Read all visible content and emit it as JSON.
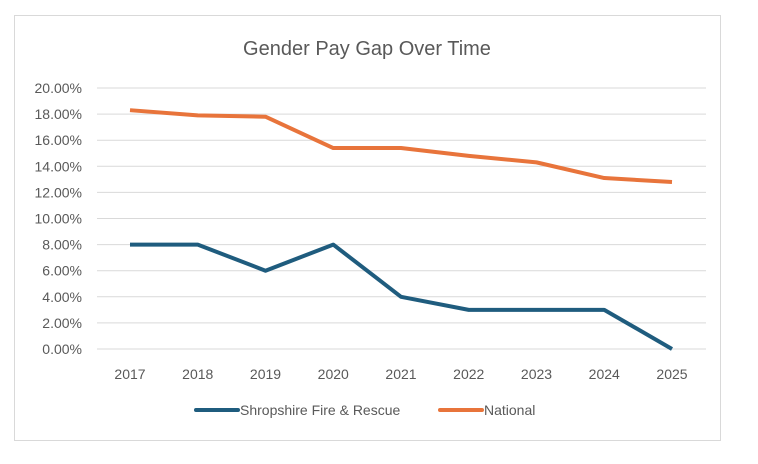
{
  "chart_data": {
    "type": "line",
    "title": "Gender Pay Gap Over Time",
    "xlabel": "",
    "ylabel": "",
    "categories": [
      "2017",
      "2018",
      "2019",
      "2020",
      "2021",
      "2022",
      "2023",
      "2024",
      "2025"
    ],
    "ylim": [
      0,
      20
    ],
    "yticks": [
      "0.00%",
      "2.00%",
      "4.00%",
      "6.00%",
      "8.00%",
      "10.00%",
      "12.00%",
      "14.00%",
      "16.00%",
      "18.00%",
      "20.00%"
    ],
    "grid": true,
    "legend_position": "bottom",
    "series": [
      {
        "name": "Shropshire Fire & Rescue",
        "color": "#1f5c7e",
        "values": [
          8,
          8,
          6,
          8,
          4,
          3,
          3,
          3,
          0
        ]
      },
      {
        "name": "National",
        "color": "#e8743b",
        "values": [
          18.3,
          17.9,
          17.8,
          15.4,
          15.4,
          14.8,
          14.3,
          13.1,
          12.8
        ]
      }
    ]
  }
}
